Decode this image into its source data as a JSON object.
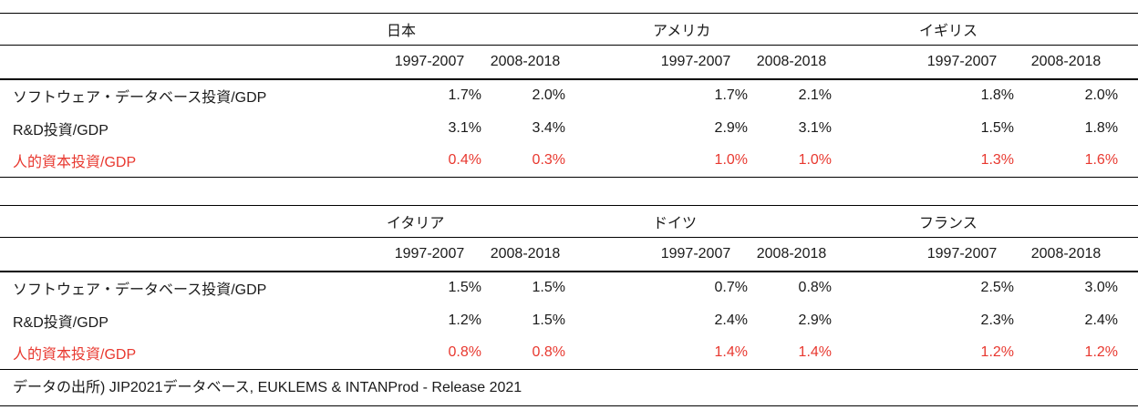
{
  "colors": {
    "text": "#1a1a1a",
    "highlight_red": "#e8382f",
    "rule": "#000000",
    "background": "#ffffff"
  },
  "source_note": "データの出所)  JIP2021データベース, EUKLEMS & INTANProd - Release 2021",
  "chart_data": [
    {
      "type": "table",
      "countries": [
        "日本",
        "アメリカ",
        "イギリス"
      ],
      "period_headers": [
        "1997-2007",
        "2008-2018",
        "1997-2007",
        "2008-2018",
        "1997-2007",
        "2008-2018"
      ],
      "rows": [
        {
          "label": "ソフトウェア・データベース投資/GDP",
          "highlight": false,
          "values": [
            "1.7%",
            "2.0%",
            "1.7%",
            "2.1%",
            "1.8%",
            "2.0%"
          ]
        },
        {
          "label": "R&D投資/GDP",
          "highlight": false,
          "values": [
            "3.1%",
            "3.4%",
            "2.9%",
            "3.1%",
            "1.5%",
            "1.8%"
          ]
        },
        {
          "label": "人的資本投資/GDP",
          "highlight": true,
          "values": [
            "0.4%",
            "0.3%",
            "1.0%",
            "1.0%",
            "1.3%",
            "1.6%"
          ]
        }
      ]
    },
    {
      "type": "table",
      "countries": [
        "イタリア",
        "ドイツ",
        "フランス"
      ],
      "period_headers": [
        "1997-2007",
        "2008-2018",
        "1997-2007",
        "2008-2018",
        "1997-2007",
        "2008-2018"
      ],
      "rows": [
        {
          "label": "ソフトウェア・データベース投資/GDP",
          "highlight": false,
          "values": [
            "1.5%",
            "1.5%",
            "0.7%",
            "0.8%",
            "2.5%",
            "3.0%"
          ]
        },
        {
          "label": "R&D投資/GDP",
          "highlight": false,
          "values": [
            "1.2%",
            "1.5%",
            "2.4%",
            "2.9%",
            "2.3%",
            "2.4%"
          ]
        },
        {
          "label": "人的資本投資/GDP",
          "highlight": true,
          "values": [
            "0.8%",
            "0.8%",
            "1.4%",
            "1.4%",
            "1.2%",
            "1.2%"
          ]
        }
      ]
    }
  ]
}
